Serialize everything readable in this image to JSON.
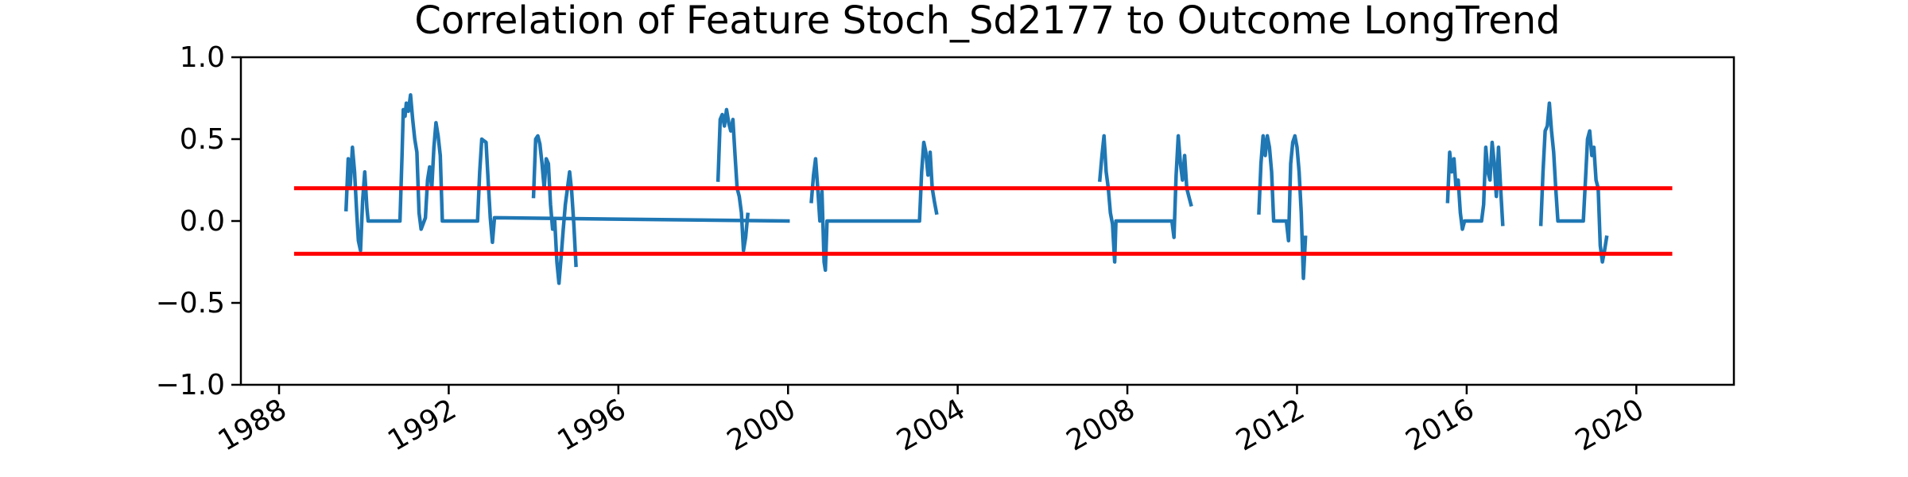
{
  "chart_data": {
    "type": "line",
    "title": "Correlation of Feature Stoch_Sd2177 to Outcome LongTrend",
    "xlabel": "",
    "ylabel": "",
    "xlim": [
      1987.1,
      2022.3
    ],
    "ylim": [
      -1.0,
      1.0
    ],
    "x_ticks": [
      1988,
      1992,
      1996,
      2000,
      2004,
      2008,
      2012,
      2016,
      2020
    ],
    "x_tick_labels": [
      "1988",
      "1992",
      "1996",
      "2000",
      "2004",
      "2008",
      "2012",
      "2016",
      "2020"
    ],
    "y_ticks": [
      1.0,
      0.5,
      0.0,
      -0.5,
      -1.0
    ],
    "y_tick_labels": [
      "1.0",
      "0.5",
      "0.0",
      "−0.5",
      "−1.0"
    ],
    "grid": false,
    "legend": "none",
    "series": [
      {
        "color": "#1f77b4",
        "segments": [
          [
            [
              1989.58,
              0.07
            ],
            [
              1989.63,
              0.38
            ],
            [
              1989.68,
              0.22
            ],
            [
              1989.73,
              0.45
            ],
            [
              1989.78,
              0.3
            ],
            [
              1989.83,
              0.05
            ],
            [
              1989.87,
              -0.12
            ],
            [
              1989.92,
              -0.18
            ],
            [
              1989.97,
              0.12
            ],
            [
              2000.0,
              0.0
            ],
            [
              1990.02,
              0.3
            ],
            [
              1990.07,
              0.08
            ],
            [
              1990.1,
              0.0
            ],
            [
              1990.3,
              0.0
            ],
            [
              1990.6,
              0.0
            ],
            [
              1990.85,
              0.0
            ],
            [
              1990.9,
              0.4
            ],
            [
              1990.93,
              0.68
            ],
            [
              1990.97,
              0.64
            ],
            [
              1991.0,
              0.72
            ],
            [
              1991.05,
              0.67
            ],
            [
              1991.1,
              0.77
            ],
            [
              1991.15,
              0.62
            ],
            [
              1991.2,
              0.5
            ],
            [
              1991.25,
              0.42
            ],
            [
              1991.3,
              0.05
            ],
            [
              1991.35,
              -0.05
            ],
            [
              1991.45,
              0.02
            ],
            [
              1991.5,
              0.25
            ],
            [
              1991.55,
              0.33
            ],
            [
              1991.6,
              0.2
            ],
            [
              1991.65,
              0.45
            ],
            [
              1991.7,
              0.6
            ],
            [
              1991.75,
              0.52
            ],
            [
              1991.8,
              0.4
            ],
            [
              1991.85,
              0.0
            ],
            [
              1992.2,
              0.0
            ],
            [
              1992.5,
              0.0
            ],
            [
              1992.68,
              0.0
            ],
            [
              1992.73,
              0.3
            ],
            [
              1992.78,
              0.5
            ],
            [
              1992.83,
              0.49
            ],
            [
              1992.88,
              0.48
            ],
            [
              1992.93,
              0.25
            ],
            [
              1992.98,
              0.02
            ],
            [
              1993.03,
              -0.13
            ],
            [
              1993.08,
              0.02
            ]
          ],
          [
            [
              1994.0,
              0.15
            ],
            [
              1994.05,
              0.5
            ],
            [
              1994.1,
              0.52
            ],
            [
              1994.15,
              0.47
            ],
            [
              1994.2,
              0.35
            ],
            [
              1994.25,
              0.2
            ],
            [
              1994.3,
              0.38
            ],
            [
              1994.35,
              0.35
            ],
            [
              1994.4,
              0.1
            ],
            [
              1994.45,
              -0.05
            ],
            [
              1994.5,
              0.0
            ],
            [
              1994.55,
              -0.25
            ],
            [
              1994.6,
              -0.38
            ],
            [
              1994.65,
              -0.22
            ],
            [
              1994.7,
              -0.05
            ],
            [
              1994.75,
              0.1
            ],
            [
              1994.8,
              0.2
            ],
            [
              1994.85,
              0.3
            ],
            [
              1994.9,
              0.18
            ],
            [
              1994.95,
              -0.02
            ],
            [
              1995.0,
              -0.27
            ]
          ],
          [
            [
              1998.35,
              0.25
            ],
            [
              1998.4,
              0.62
            ],
            [
              1998.45,
              0.65
            ],
            [
              1998.5,
              0.58
            ],
            [
              1998.55,
              0.68
            ],
            [
              1998.6,
              0.6
            ],
            [
              1998.65,
              0.55
            ],
            [
              1998.7,
              0.62
            ],
            [
              1998.75,
              0.4
            ],
            [
              1998.8,
              0.2
            ],
            [
              1998.85,
              0.15
            ],
            [
              1998.9,
              0.05
            ],
            [
              1998.95,
              -0.18
            ],
            [
              1999.0,
              -0.1
            ],
            [
              1999.05,
              0.04
            ]
          ],
          [
            [
              2000.55,
              0.12
            ],
            [
              2000.6,
              0.28
            ],
            [
              2000.65,
              0.38
            ],
            [
              2000.7,
              0.2
            ],
            [
              2000.75,
              0.0
            ],
            [
              2000.8,
              0.18
            ],
            [
              2000.85,
              -0.25
            ],
            [
              2000.88,
              -0.3
            ],
            [
              2000.92,
              0.0
            ],
            [
              2001.2,
              0.0
            ],
            [
              2002.0,
              0.0
            ],
            [
              2002.6,
              0.0
            ],
            [
              2003.1,
              0.0
            ],
            [
              2003.15,
              0.3
            ],
            [
              2003.2,
              0.48
            ],
            [
              2003.25,
              0.42
            ],
            [
              2003.3,
              0.28
            ],
            [
              2003.35,
              0.42
            ],
            [
              2003.4,
              0.2
            ],
            [
              2003.45,
              0.12
            ],
            [
              2003.5,
              0.05
            ]
          ],
          [
            [
              2007.35,
              0.25
            ],
            [
              2007.4,
              0.4
            ],
            [
              2007.45,
              0.52
            ],
            [
              2007.5,
              0.3
            ],
            [
              2007.55,
              0.2
            ],
            [
              2007.6,
              0.05
            ],
            [
              2007.65,
              -0.02
            ],
            [
              2007.7,
              -0.25
            ],
            [
              2007.73,
              0.0
            ],
            [
              2008.0,
              0.0
            ],
            [
              2008.6,
              0.0
            ],
            [
              2009.05,
              0.0
            ],
            [
              2009.1,
              -0.1
            ],
            [
              2009.15,
              0.28
            ],
            [
              2009.2,
              0.52
            ],
            [
              2009.25,
              0.35
            ],
            [
              2009.3,
              0.25
            ],
            [
              2009.35,
              0.4
            ],
            [
              2009.4,
              0.2
            ],
            [
              2009.45,
              0.15
            ],
            [
              2009.5,
              0.1
            ]
          ],
          [
            [
              2011.1,
              0.05
            ],
            [
              2011.15,
              0.35
            ],
            [
              2011.2,
              0.52
            ],
            [
              2011.25,
              0.4
            ],
            [
              2011.3,
              0.52
            ],
            [
              2011.35,
              0.45
            ],
            [
              2011.4,
              0.3
            ],
            [
              2011.45,
              0.0
            ],
            [
              2011.6,
              0.0
            ],
            [
              2011.75,
              0.0
            ],
            [
              2011.8,
              -0.12
            ],
            [
              2011.85,
              0.35
            ],
            [
              2011.9,
              0.48
            ],
            [
              2011.95,
              0.52
            ],
            [
              2012.0,
              0.45
            ],
            [
              2012.05,
              0.3
            ],
            [
              2012.1,
              0.05
            ],
            [
              2012.15,
              -0.35
            ],
            [
              2012.2,
              -0.1
            ]
          ],
          [
            [
              2015.55,
              0.12
            ],
            [
              2015.6,
              0.42
            ],
            [
              2015.65,
              0.3
            ],
            [
              2015.7,
              0.38
            ],
            [
              2015.75,
              0.2
            ],
            [
              2015.8,
              0.25
            ],
            [
              2015.85,
              0.05
            ],
            [
              2015.9,
              -0.05
            ],
            [
              2015.95,
              0.0
            ],
            [
              2016.2,
              0.0
            ],
            [
              2016.35,
              0.0
            ],
            [
              2016.4,
              0.1
            ],
            [
              2016.45,
              0.45
            ],
            [
              2016.5,
              0.3
            ],
            [
              2016.55,
              0.25
            ],
            [
              2016.6,
              0.48
            ],
            [
              2016.65,
              0.35
            ],
            [
              2016.7,
              0.15
            ],
            [
              2016.75,
              0.45
            ],
            [
              2016.8,
              0.2
            ],
            [
              2016.85,
              -0.02
            ]
          ],
          [
            [
              2017.75,
              -0.02
            ],
            [
              2017.8,
              0.3
            ],
            [
              2017.85,
              0.55
            ],
            [
              2017.9,
              0.58
            ],
            [
              2017.95,
              0.72
            ],
            [
              2018.0,
              0.55
            ],
            [
              2018.05,
              0.42
            ],
            [
              2018.1,
              0.2
            ],
            [
              2018.15,
              0.0
            ],
            [
              2018.4,
              0.0
            ],
            [
              2018.75,
              0.0
            ],
            [
              2018.8,
              0.25
            ],
            [
              2018.85,
              0.5
            ],
            [
              2018.9,
              0.55
            ],
            [
              2018.95,
              0.4
            ],
            [
              2019.0,
              0.45
            ],
            [
              2019.05,
              0.25
            ],
            [
              2019.1,
              0.2
            ],
            [
              2019.15,
              -0.15
            ],
            [
              2019.2,
              -0.25
            ],
            [
              2019.25,
              -0.18
            ],
            [
              2019.3,
              -0.1
            ]
          ]
        ]
      },
      {
        "color": "#ff0000",
        "x": [
          1988.4,
          2020.8
        ],
        "y": [
          0.2,
          0.2
        ]
      },
      {
        "color": "#ff0000",
        "x": [
          1988.4,
          2020.8
        ],
        "y": [
          -0.2,
          -0.2
        ]
      }
    ]
  }
}
